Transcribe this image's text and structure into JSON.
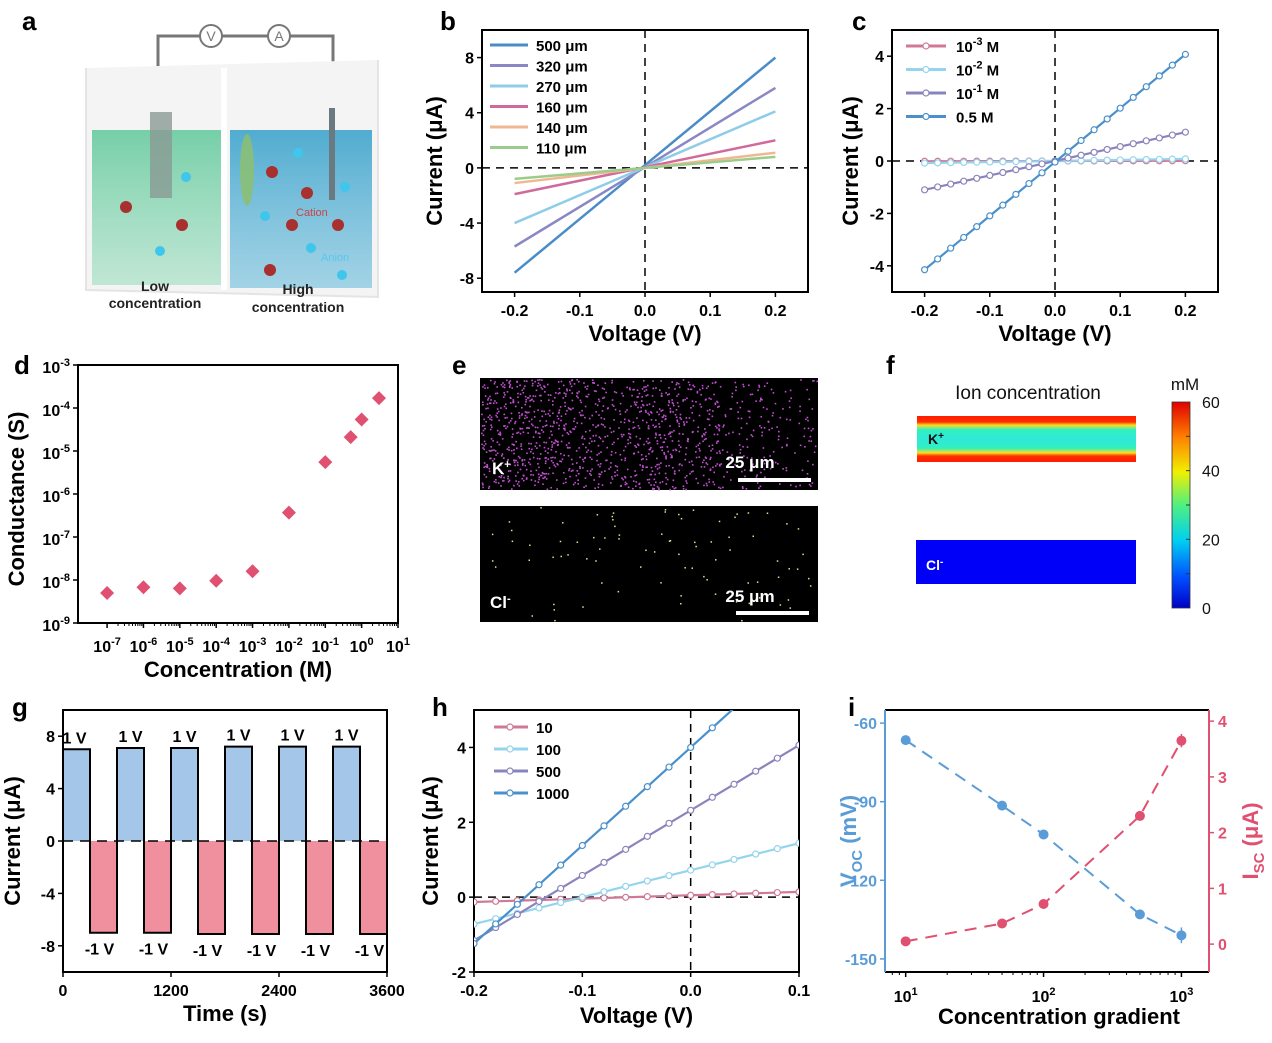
{
  "panel_labels": [
    "a",
    "b",
    "c",
    "d",
    "e",
    "f",
    "g",
    "h",
    "i"
  ],
  "panel_a": {
    "meter_v": "V",
    "meter_a": "A",
    "low_label_1": "Low",
    "low_label_2": "concentration",
    "high_label_1": "High",
    "high_label_2": "concentration",
    "cation_label": "Cation",
    "anion_label": "Anion",
    "colors": {
      "low": "#5fc89a",
      "high": "#3ea4cc",
      "cation": "#a8302f",
      "anion": "#3ec6ec"
    }
  },
  "panel_e": {
    "top_label": "K",
    "top_sup": "+",
    "bottom_label": "Cl",
    "bottom_sup": "-",
    "scale_top": "25 μm",
    "scale_bottom": "25 μm",
    "colors": {
      "k_dots": "#c050d0",
      "cl_dots": "#d8e890"
    }
  },
  "panel_f": {
    "title": "Ion concentration",
    "unit": "mM",
    "k_label": "K",
    "k_sup": "+",
    "cl_label": "Cl",
    "cl_sup": "-",
    "colorbar_ticks": [
      "60",
      "40",
      "20",
      "0"
    ],
    "colorbar_range": [
      0,
      60
    ]
  },
  "chart_data": [
    {
      "id": "b",
      "type": "line",
      "title": "",
      "xlabel": "Voltage (V)",
      "ylabel": "Current (μA)",
      "xlim": [
        -0.25,
        0.25
      ],
      "ylim": [
        -9,
        10
      ],
      "xticks": [
        "-0.2",
        "-0.1",
        "0.0",
        "0.1",
        "0.2"
      ],
      "xtick_values": [
        -0.2,
        -0.1,
        0.0,
        0.1,
        0.2
      ],
      "yticks": [
        "-8",
        "-4",
        "0",
        "4",
        "8"
      ],
      "ytick_values": [
        -8,
        -4,
        0,
        4,
        8
      ],
      "legend_position": "top-left",
      "series": [
        {
          "name": "500 μm",
          "color": "#4a8cc8",
          "x": [
            -0.2,
            0.2
          ],
          "y": [
            -7.6,
            8.0
          ]
        },
        {
          "name": "320 μm",
          "color": "#8a88c4",
          "x": [
            -0.2,
            0.2
          ],
          "y": [
            -5.7,
            5.8
          ]
        },
        {
          "name": "270 μm",
          "color": "#8ecce8",
          "x": [
            -0.2,
            0.2
          ],
          "y": [
            -4.0,
            4.1
          ]
        },
        {
          "name": "160 μm",
          "color": "#d06a9a",
          "x": [
            -0.2,
            0.2
          ],
          "y": [
            -1.9,
            2.0
          ]
        },
        {
          "name": "140 μm",
          "color": "#f0b890",
          "x": [
            -0.2,
            0.2
          ],
          "y": [
            -1.1,
            1.1
          ]
        },
        {
          "name": "110 μm",
          "color": "#9ccc8c",
          "x": [
            -0.2,
            0.2
          ],
          "y": [
            -0.8,
            0.8
          ]
        }
      ]
    },
    {
      "id": "c",
      "type": "line",
      "title": "",
      "xlabel": "Voltage (V)",
      "ylabel": "Current (μA)",
      "xlim": [
        -0.25,
        0.25
      ],
      "ylim": [
        -5,
        5
      ],
      "xticks": [
        "-0.2",
        "-0.1",
        "0.0",
        "0.1",
        "0.2"
      ],
      "xtick_values": [
        -0.2,
        -0.1,
        0.0,
        0.1,
        0.2
      ],
      "yticks": [
        "-4",
        "-2",
        "0",
        "2",
        "4"
      ],
      "ytick_values": [
        -4,
        -2,
        0,
        2,
        4
      ],
      "legend_position": "top-left",
      "series": [
        {
          "name": "10",
          "sup": "-3",
          "unit": " M",
          "color": "#d07898",
          "slope": 0.05,
          "yspan": [
            -0.01,
            0.01
          ]
        },
        {
          "name": "10",
          "sup": "-2",
          "unit": " M",
          "color": "#94d4ec",
          "yspan": [
            -0.08,
            0.08
          ]
        },
        {
          "name": "10",
          "sup": "-1",
          "unit": " M",
          "color": "#8a84bc",
          "yspan": [
            -1.1,
            1.1
          ]
        },
        {
          "name": "0.5",
          "sup": "",
          "unit": " M",
          "color": "#4a90cc",
          "yspan": [
            -4.15,
            4.07
          ]
        }
      ],
      "x_points": "-0.2 to 0.2 step 0.02"
    },
    {
      "id": "d",
      "type": "scatter",
      "title": "",
      "xlabel": "Concentration (M)",
      "ylabel": "Conductance (S)",
      "xscale": "log",
      "yscale": "log",
      "xlim_exp": [
        -7.8,
        1
      ],
      "ylim_exp": [
        -9,
        -3
      ],
      "xticks_exp": [
        -7,
        -6,
        -5,
        -4,
        -3,
        -2,
        -1,
        0,
        1
      ],
      "yticks_exp": [
        -9,
        -8,
        -7,
        -6,
        -5,
        -4,
        -3
      ],
      "marker_color": "#e05070",
      "x": [
        1e-07,
        1e-06,
        1e-05,
        0.0001,
        0.001,
        0.01,
        0.1,
        0.5,
        1,
        3
      ],
      "y": [
        5e-09,
        6.8e-09,
        6.4e-09,
        9.6e-09,
        1.6e-08,
        3.7e-07,
        5.5e-06,
        2.1e-05,
        5.4e-05,
        0.00017
      ]
    },
    {
      "id": "g",
      "type": "area",
      "title": "",
      "xlabel": "Time (s)",
      "ylabel": "Current (μA)",
      "xlim": [
        0,
        3600
      ],
      "ylim": [
        -10,
        10
      ],
      "xticks": [
        "0",
        "1200",
        "2400",
        "3600"
      ],
      "xtick_values": [
        0,
        1200,
        2400,
        3600
      ],
      "yticks": [
        "-8",
        "-4",
        "0",
        "4",
        "8"
      ],
      "ytick_values": [
        -8,
        -4,
        0,
        4,
        8
      ],
      "pos_color": "#a4c6e8",
      "neg_color": "#f0909e",
      "pos_label": "1 V",
      "neg_label": "-1 V",
      "period_s": 600,
      "cycles": 6,
      "pos_current": [
        7.0,
        7.1,
        7.1,
        7.2,
        7.2,
        7.2
      ],
      "neg_current": [
        -7.0,
        -7.0,
        -7.1,
        -7.1,
        -7.1,
        -7.1
      ]
    },
    {
      "id": "h",
      "type": "line",
      "title": "",
      "xlabel": "Voltage (V)",
      "ylabel": "Current (μA)",
      "xlim": [
        -0.2,
        0.1
      ],
      "ylim": [
        -2,
        5
      ],
      "xticks": [
        "-0.2",
        "-0.1",
        "0.0",
        "0.1"
      ],
      "xtick_values": [
        -0.2,
        -0.1,
        0.0,
        0.1
      ],
      "yticks": [
        "-2",
        "0",
        "2",
        "4"
      ],
      "ytick_values": [
        -2,
        0,
        2,
        4
      ],
      "legend_position": "top-left",
      "series": [
        {
          "name": "10",
          "color": "#d07898",
          "y0": 0.05,
          "slope": 0.9
        },
        {
          "name": "100",
          "color": "#94d4ec",
          "y0": 0.72,
          "slope": 7.2
        },
        {
          "name": "500",
          "color": "#8a84bc",
          "y0": 2.32,
          "slope": 17.4
        },
        {
          "name": "1000",
          "color": "#4a90cc",
          "y0": 4.0,
          "slope": 26.2
        }
      ],
      "x_points": "-0.2 to 0.1 step 0.02"
    },
    {
      "id": "i",
      "type": "line",
      "title": "",
      "xlabel": "Concentration gradient",
      "ylabel_left": "V",
      "ylabel_left_sub": "OC",
      "ylabel_left_unit": " (mV)",
      "ylabel_right": "I",
      "ylabel_right_sub": "SC",
      "ylabel_right_unit": " (μA)",
      "xscale": "log",
      "xlim_exp": [
        0.85,
        3.2
      ],
      "xticks_exp": [
        1,
        2,
        3
      ],
      "ylim_left": [
        -155,
        -55
      ],
      "yticks_left": [
        -60,
        -90,
        -120,
        -150
      ],
      "ylim_right": [
        -0.5,
        4.2
      ],
      "yticks_right": [
        0,
        1,
        2,
        3,
        4
      ],
      "left_color": "#5a9cd8",
      "right_color": "#e05070",
      "x": [
        10,
        50,
        100,
        500,
        1000
      ],
      "voc": [
        -66.5,
        -91.5,
        -102.5,
        -133,
        -141
      ],
      "voc_err": [
        0,
        0,
        0,
        0,
        3
      ],
      "isc": [
        0.05,
        0.37,
        0.72,
        2.3,
        3.65
      ],
      "isc_err": [
        0,
        0,
        0,
        0,
        0.12
      ]
    }
  ]
}
